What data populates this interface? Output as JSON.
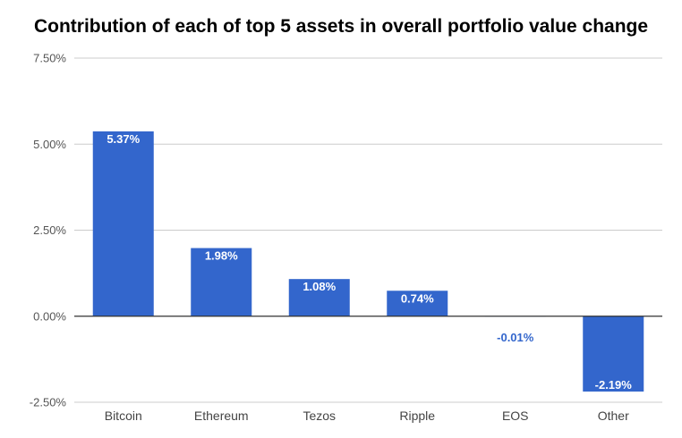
{
  "chart_data": {
    "type": "bar",
    "title": "Contribution of each of top 5 assets in overall portfolio value change",
    "categories": [
      "Bitcoin",
      "Ethereum",
      "Tezos",
      "Ripple",
      "EOS",
      "Other"
    ],
    "values": [
      5.37,
      1.98,
      1.08,
      0.74,
      -0.01,
      -2.19
    ],
    "data_labels": [
      "5.37%",
      "1.98%",
      "1.08%",
      "0.74%",
      "-0.01%",
      "-2.19%"
    ],
    "yticks": [
      -2.5,
      0,
      2.5,
      5,
      7.5
    ],
    "ytick_labels": [
      "-2.50%",
      "0.00%",
      "2.50%",
      "5.00%",
      "7.50%"
    ],
    "ylim": [
      -2.5,
      7.5
    ],
    "xlabel": "",
    "ylabel": "",
    "grid": true,
    "legend": "none"
  },
  "colors": {
    "bar": "#3366cc",
    "grid": "#cccccc",
    "zero_line": "#333333",
    "label_inside": "#ffffff",
    "label_outside": "#3366cc"
  }
}
